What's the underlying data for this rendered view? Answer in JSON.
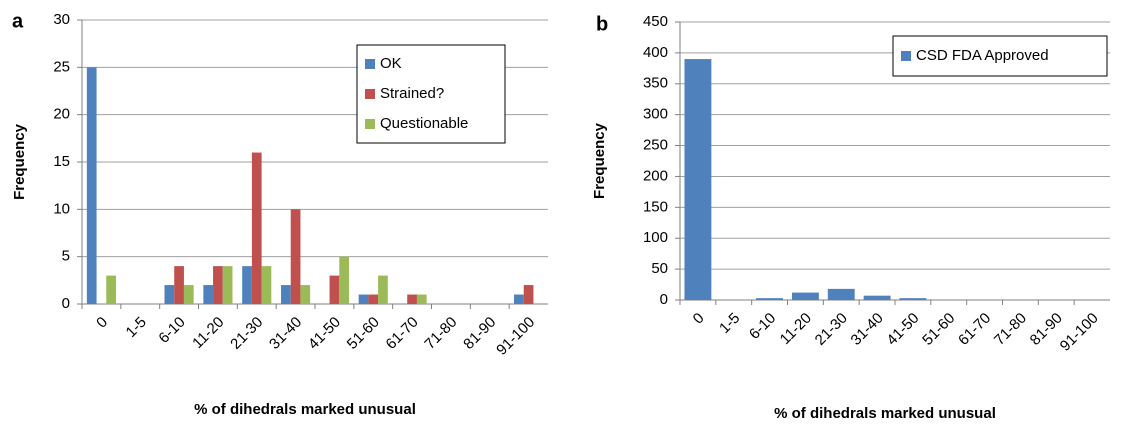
{
  "chart_data": [
    {
      "type": "bar",
      "label": "a",
      "ylabel": "Frequency",
      "xlabel": "% of dihedrals marked unusual",
      "categories": [
        "0",
        "1-5",
        "6-10",
        "11-20",
        "21-30",
        "31-40",
        "41-50",
        "51-60",
        "61-70",
        "71-80",
        "81-90",
        "91-100"
      ],
      "series": [
        {
          "name": "OK",
          "color": "#4f81bd",
          "values": [
            25,
            0,
            2,
            2,
            4,
            2,
            0,
            1,
            0,
            0,
            0,
            1
          ]
        },
        {
          "name": "Strained?",
          "color": "#c0504d",
          "values": [
            0,
            0,
            4,
            4,
            16,
            10,
            3,
            1,
            1,
            0,
            0,
            2
          ]
        },
        {
          "name": "Questionable",
          "color": "#9bbb59",
          "values": [
            3,
            0,
            2,
            4,
            4,
            2,
            5,
            3,
            1,
            0,
            0,
            0
          ]
        }
      ],
      "ylim": [
        0,
        30
      ],
      "yticks": [
        0,
        5,
        10,
        15,
        20,
        25,
        30
      ],
      "grid": true
    },
    {
      "type": "bar",
      "label": "b",
      "ylabel": "Frequency",
      "xlabel": "% of dihedrals marked unusual",
      "categories": [
        "0",
        "1-5",
        "6-10",
        "11-20",
        "21-30",
        "31-40",
        "41-50",
        "51-60",
        "61-70",
        "71-80",
        "81-90",
        "91-100"
      ],
      "series": [
        {
          "name": "CSD FDA Approved",
          "color": "#4f81bd",
          "values": [
            390,
            0,
            3,
            12,
            18,
            7,
            3,
            0,
            0,
            0,
            0,
            0
          ]
        }
      ],
      "ylim": [
        0,
        450
      ],
      "yticks": [
        0,
        50,
        100,
        150,
        200,
        250,
        300,
        350,
        400,
        450
      ],
      "grid": true
    }
  ]
}
